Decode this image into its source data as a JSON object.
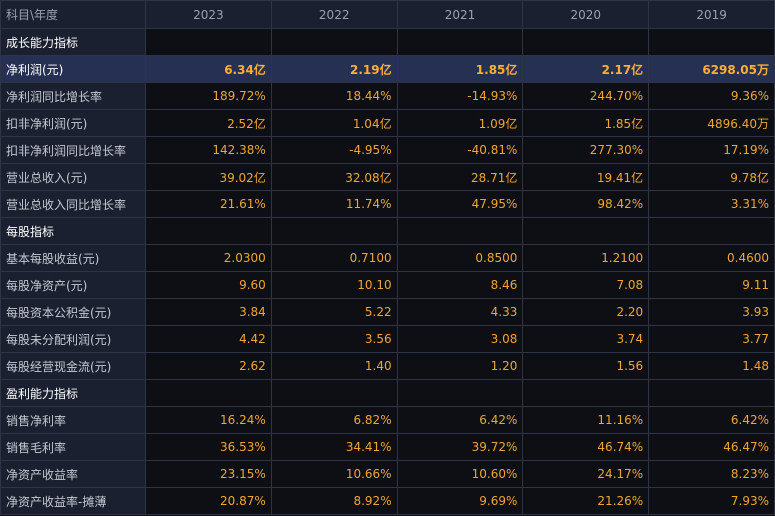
{
  "table": {
    "columns": [
      "科目\\年度",
      "2023",
      "2022",
      "2021",
      "2020",
      "2019"
    ],
    "rows": [
      {
        "label": "成长能力指标",
        "section": true
      },
      {
        "label": "净利润(元)",
        "highlight": true,
        "values": [
          "6.34亿",
          "2.19亿",
          "1.85亿",
          "2.17亿",
          "6298.05万"
        ]
      },
      {
        "label": "净利润同比增长率",
        "values": [
          "189.72%",
          "18.44%",
          "-14.93%",
          "244.70%",
          "9.36%"
        ]
      },
      {
        "label": "扣非净利润(元)",
        "values": [
          "2.52亿",
          "1.04亿",
          "1.09亿",
          "1.85亿",
          "4896.40万"
        ]
      },
      {
        "label": "扣非净利润同比增长率",
        "values": [
          "142.38%",
          "-4.95%",
          "-40.81%",
          "277.30%",
          "17.19%"
        ]
      },
      {
        "label": "营业总收入(元)",
        "values": [
          "39.02亿",
          "32.08亿",
          "28.71亿",
          "19.41亿",
          "9.78亿"
        ]
      },
      {
        "label": "营业总收入同比增长率",
        "values": [
          "21.61%",
          "11.74%",
          "47.95%",
          "98.42%",
          "3.31%"
        ]
      },
      {
        "label": "每股指标",
        "section": true
      },
      {
        "label": "基本每股收益(元)",
        "values": [
          "2.0300",
          "0.7100",
          "0.8500",
          "1.2100",
          "0.4600"
        ]
      },
      {
        "label": "每股净资产(元)",
        "values": [
          "9.60",
          "10.10",
          "8.46",
          "7.08",
          "9.11"
        ]
      },
      {
        "label": "每股资本公积金(元)",
        "values": [
          "3.84",
          "5.22",
          "4.33",
          "2.20",
          "3.93"
        ]
      },
      {
        "label": "每股未分配利润(元)",
        "values": [
          "4.42",
          "3.56",
          "3.08",
          "3.74",
          "3.77"
        ]
      },
      {
        "label": "每股经营现金流(元)",
        "values": [
          "2.62",
          "1.40",
          "1.20",
          "1.56",
          "1.48"
        ]
      },
      {
        "label": "盈利能力指标",
        "section": true
      },
      {
        "label": "销售净利率",
        "values": [
          "16.24%",
          "6.82%",
          "6.42%",
          "11.16%",
          "6.42%"
        ]
      },
      {
        "label": "销售毛利率",
        "values": [
          "36.53%",
          "34.41%",
          "39.72%",
          "46.74%",
          "46.47%"
        ]
      },
      {
        "label": "净资产收益率",
        "values": [
          "23.15%",
          "10.66%",
          "10.60%",
          "24.17%",
          "8.23%"
        ]
      },
      {
        "label": "净资产收益率-摊薄",
        "values": [
          "20.87%",
          "8.92%",
          "9.69%",
          "21.26%",
          "7.93%"
        ]
      }
    ]
  }
}
